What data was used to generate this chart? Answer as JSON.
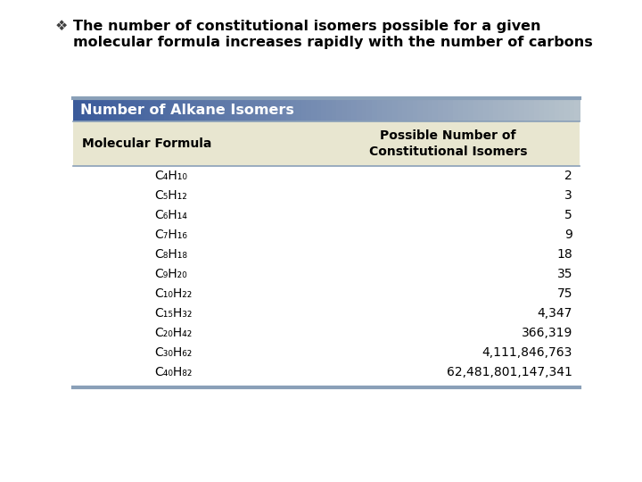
{
  "title_text_line1": "The number of constitutional isomers possible for a given",
  "title_text_line2": "molecular formula increases rapidly with the number of carbons",
  "bullet": "❖",
  "table_title": "Number of Alkane Isomers",
  "col1_header": "Molecular Formula",
  "col2_header": "Possible Number of\nConstitutional Isomers",
  "rows": [
    [
      "C₄H₁₀",
      "2"
    ],
    [
      "C₅H₁₂",
      "3"
    ],
    [
      "C₆H₁₄",
      "5"
    ],
    [
      "C₇H₁₆",
      "9"
    ],
    [
      "C₈H₁₈",
      "18"
    ],
    [
      "C₉H₂₀",
      "35"
    ],
    [
      "C₁₀H₂₂",
      "75"
    ],
    [
      "C₁₅H₃₂",
      "4,347"
    ],
    [
      "C₂₀H₄₂",
      "366,319"
    ],
    [
      "C₃₀H₆₂",
      "4,111,846,763"
    ],
    [
      "C₄₀H₈₂",
      "62,481,801,147,341"
    ]
  ],
  "header_bg": "#e8e6d0",
  "table_border_color_top": "#8aa0b8",
  "table_border_color_bottom": "#8aa0b8",
  "table_title_bg_left": "#3a5a9a",
  "table_title_bg_right": "#b0bcc8",
  "table_title_color": "#ffffff",
  "table_title_color_dark": "#1a3060",
  "table_bg": "#ffffff",
  "bullet_color": "#404040",
  "title_color": "#000000",
  "title_fontsize": 11.5,
  "table_title_fontsize": 11.5,
  "header_fontsize": 10,
  "row_fontsize": 10,
  "bg_color": "#ffffff"
}
